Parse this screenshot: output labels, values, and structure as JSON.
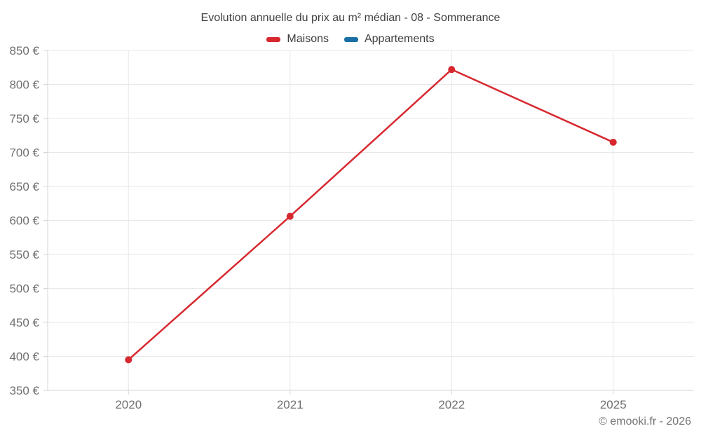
{
  "chart_data": {
    "type": "line",
    "title": "Evolution annuelle du prix au m² médian - 08 - Sommerance",
    "categories": [
      "2020",
      "2021",
      "2022",
      "2025"
    ],
    "series": [
      {
        "name": "Maisons",
        "color": "#d7282f",
        "values": [
          395,
          606,
          822,
          715
        ]
      },
      {
        "name": "Appartements",
        "color": "#1a6fa4",
        "values": []
      }
    ],
    "ylim": [
      350,
      850
    ],
    "ytick_step": 50,
    "ytick_suffix": " €",
    "grid": true,
    "legend_position": "top"
  },
  "footer": {
    "copyright": "© emooki.fr - 2026"
  },
  "colors": {
    "grid": "#e7e7e7",
    "axis": "#d4d4d4",
    "tick_text": "#6f6f6f",
    "title_text": "#3f3f3f"
  }
}
